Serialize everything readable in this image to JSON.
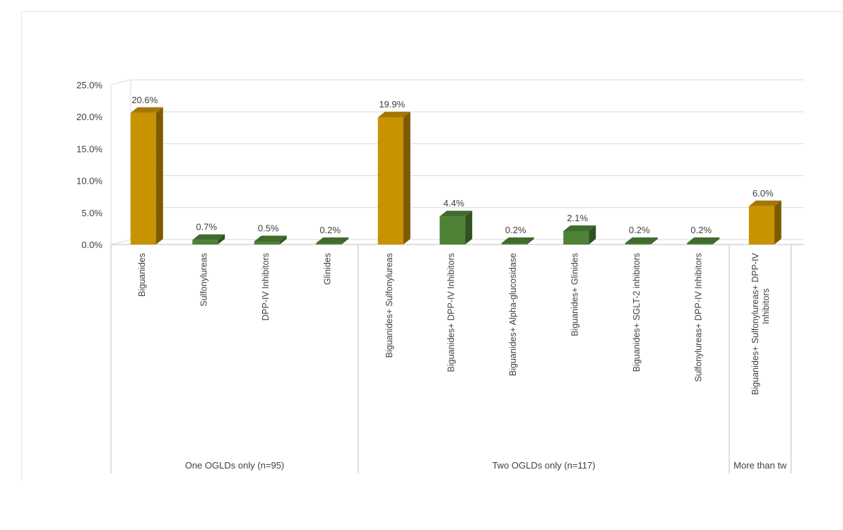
{
  "chart_data": {
    "type": "bar",
    "title": "",
    "xlabel": "",
    "ylabel": "",
    "ylim": [
      0,
      25
    ],
    "yticks": [
      "0.0%",
      "5.0%",
      "10.0%",
      "15.0%",
      "20.0%",
      "25.0%"
    ],
    "grid": true,
    "style": "3d-columns",
    "colors": {
      "highlight": "#c89200",
      "normal": "#4e8236"
    },
    "categories": [
      "Biguanides",
      "Sulfonylureas",
      "DPP-IV Inhibitors",
      "Glinides",
      "Biguanides+ Sulfonylureas",
      "Biguanides+ DPP-IV Inhibitors",
      "Biguanides+ Alpha-glucosidase",
      "Biguanides+ Glinides",
      "Biguanides+ SGLT-2 inhibitors",
      "Sulfonylureas+ DPP-IV Inhibitors",
      "Biguanides+ Sulfonylureas+ DPP-IV Inhibitors"
    ],
    "values": [
      20.6,
      0.7,
      0.5,
      0.2,
      19.9,
      4.4,
      0.2,
      2.1,
      0.2,
      0.2,
      6.0
    ],
    "data_labels": [
      "20.6%",
      "0.7%",
      "0.5%",
      "0.2%",
      "19.9%",
      "4.4%",
      "0.2%",
      "2.1%",
      "0.2%",
      "0.2%",
      "6.0%"
    ],
    "highlight": [
      true,
      false,
      false,
      false,
      true,
      false,
      false,
      false,
      false,
      false,
      true
    ],
    "groups": [
      {
        "label": "One OGLDs only (n=95)",
        "count": 4
      },
      {
        "label": "Two OGLDs only (n=117)",
        "count": 6
      },
      {
        "label": "More than tw",
        "count": 1
      }
    ]
  }
}
